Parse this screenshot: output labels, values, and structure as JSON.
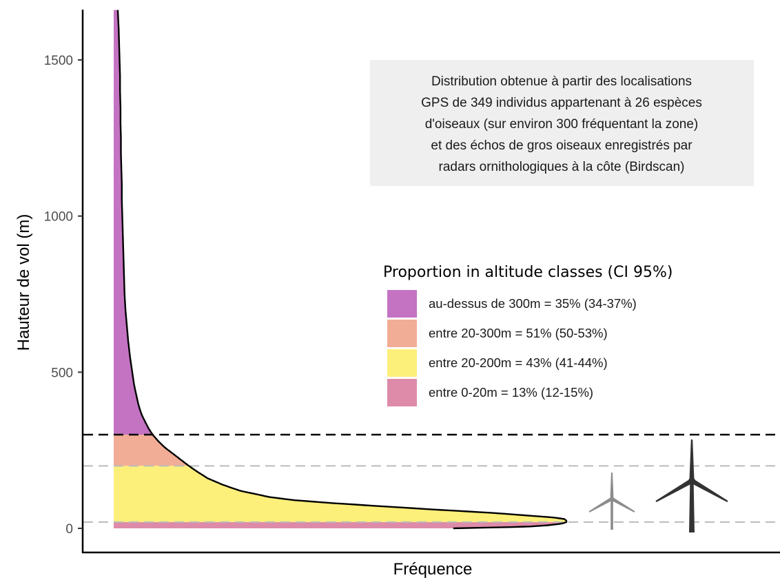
{
  "chart_data": {
    "type": "area",
    "xlabel": "Fréquence",
    "ylabel": "Hauteur de vol (m)",
    "ylim": [
      -80,
      1660
    ],
    "xlim": [
      0,
      1
    ],
    "y_ticks": [
      {
        "value": 0,
        "label": "0"
      },
      {
        "value": 500,
        "label": "500"
      },
      {
        "value": 1000,
        "label": "1000"
      },
      {
        "value": 1500,
        "label": "1500"
      }
    ],
    "grid": false,
    "density": {
      "altitude": [
        0,
        5,
        10,
        15,
        20,
        25,
        30,
        35,
        40,
        50,
        60,
        70,
        80,
        90,
        100,
        120,
        140,
        160,
        180,
        200,
        220,
        240,
        260,
        280,
        300,
        320,
        340,
        360,
        380,
        400,
        420,
        440,
        460,
        480,
        500,
        550,
        600,
        650,
        700,
        750,
        800,
        850,
        900,
        950,
        1000,
        1050,
        1100,
        1150,
        1200,
        1250,
        1300,
        1350,
        1400,
        1450,
        1500,
        1550,
        1600,
        1660
      ],
      "frequency": [
        0.75,
        0.91,
        0.96,
        0.99,
        1.0,
        1.0,
        0.995,
        0.97,
        0.925,
        0.83,
        0.71,
        0.6,
        0.49,
        0.4,
        0.345,
        0.28,
        0.24,
        0.208,
        0.186,
        0.166,
        0.148,
        0.13,
        0.112,
        0.098,
        0.086,
        0.077,
        0.07,
        0.063,
        0.058,
        0.054,
        0.051,
        0.048,
        0.045,
        0.043,
        0.041,
        0.036,
        0.032,
        0.029,
        0.026,
        0.024,
        0.023,
        0.022,
        0.021,
        0.02,
        0.019,
        0.018,
        0.018,
        0.017,
        0.016,
        0.016,
        0.015,
        0.015,
        0.014,
        0.014,
        0.013,
        0.012,
        0.011,
        0.009
      ]
    },
    "bands": [
      {
        "name": "entre 0-20m",
        "from": 0,
        "to": 20,
        "color": "#DE8BA9"
      },
      {
        "name": "entre 20-200m",
        "from": 20,
        "to": 200,
        "color": "#FCEF7A"
      },
      {
        "name": "entre 20-300m",
        "from": 200,
        "to": 300,
        "color": "#F2AD96"
      },
      {
        "name": "au-dessus de 300m",
        "from": 300,
        "to": 1660,
        "color": "#C473C3"
      }
    ],
    "reference_lines": [
      {
        "value": 300,
        "color": "#000000",
        "style": "dashed"
      },
      {
        "value": 200,
        "color": "#bbbbbb",
        "style": "dashed"
      },
      {
        "value": 20,
        "color": "#bbbbbb",
        "style": "dashed"
      }
    ],
    "legend": {
      "title": "Proportion in altitude classes (CI 95%)",
      "placement": "right",
      "items": [
        {
          "label": "au-dessus de 300m = 35% (34-37%)",
          "color": "#C473C3"
        },
        {
          "label": "entre 20-300m = 51% (50-53%)",
          "color": "#F2AD96"
        },
        {
          "label": "entre 20-200m = 43% (41-44%)",
          "color": "#FCEF7A"
        },
        {
          "label": "entre 0-20m = 13% (12-15%)",
          "color": "#DE8BA9"
        }
      ]
    },
    "annotation": {
      "lines": [
        "Distribution obtenue à partir des localisations",
        "GPS de 349 individus appartenant à 26 espèces",
        "d'oiseaux (sur environ 300 fréquentant la zone)",
        "et des échos de gros oiseaux enregistrés par",
        "radars ornithologiques à la côte (Birdscan)"
      ],
      "background": "#efefef"
    },
    "icons": [
      {
        "name": "small-wind-turbine-icon",
        "color": "#8c8c8c"
      },
      {
        "name": "large-wind-turbine-icon",
        "color": "#333333"
      }
    ]
  }
}
